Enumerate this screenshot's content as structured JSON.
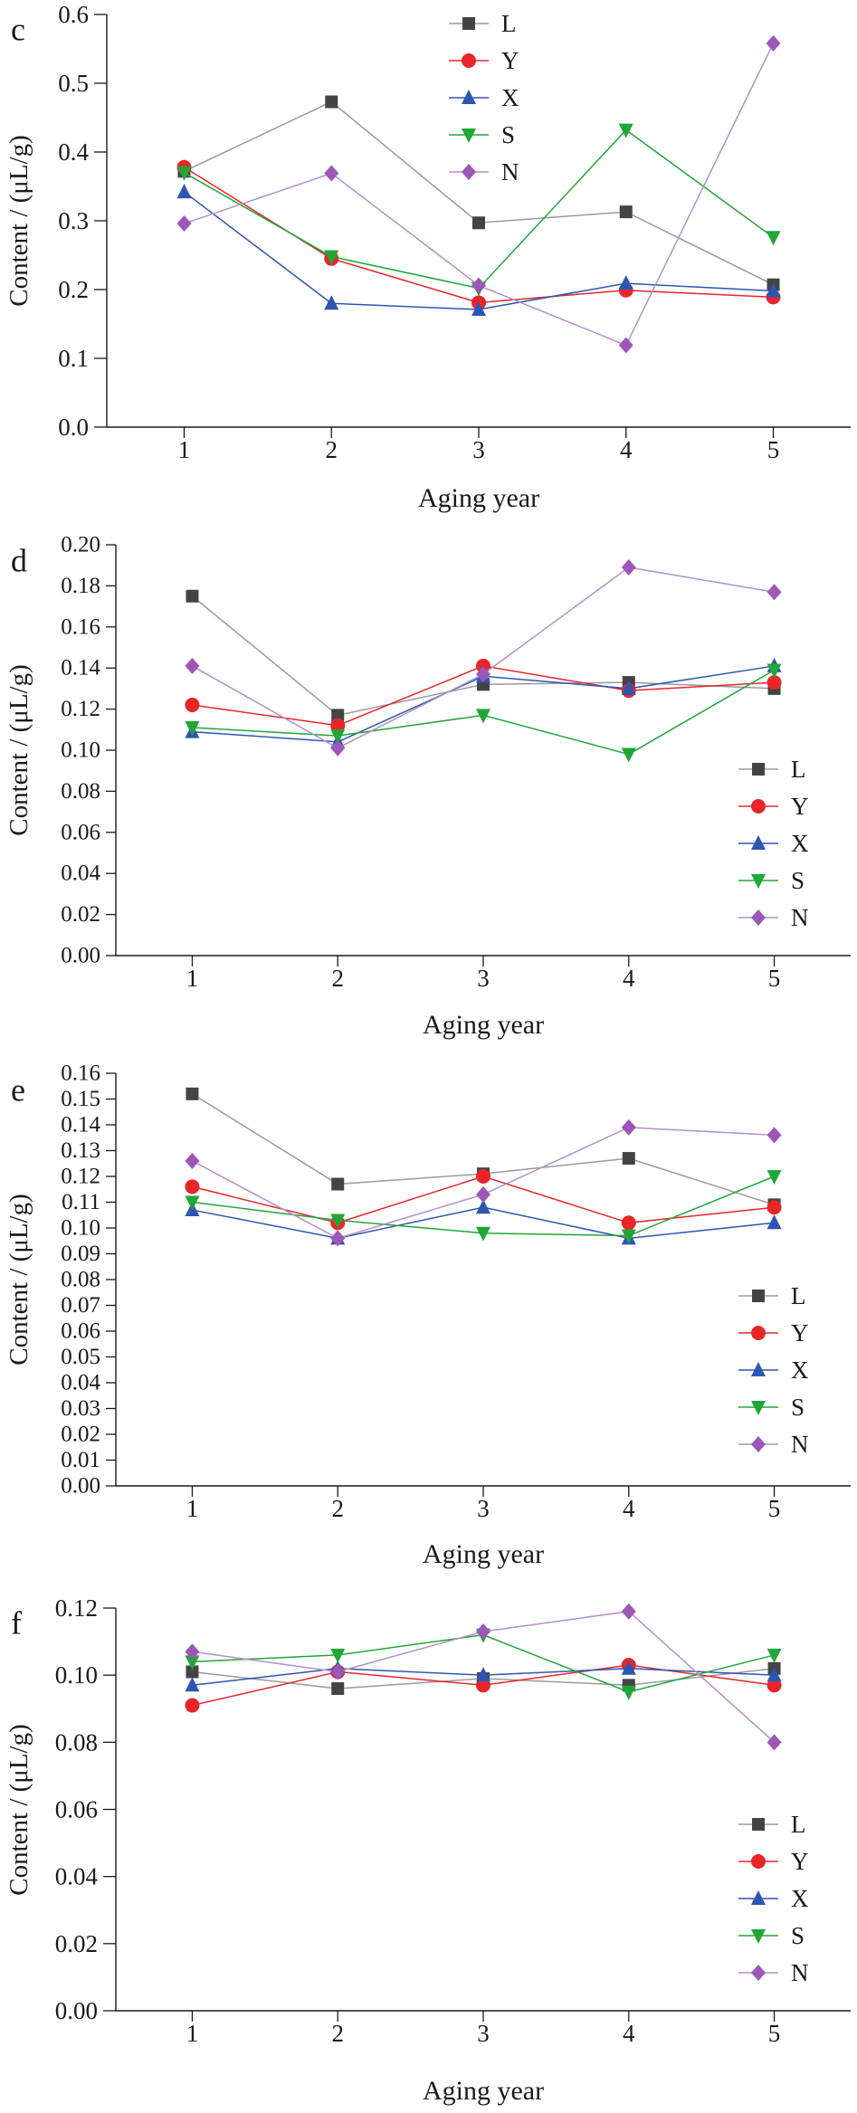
{
  "chart_data": [
    {
      "type": "line",
      "panel_label": "c",
      "xlabel": "Aging year",
      "ylabel": "Content / (μL/g)",
      "x": [
        1,
        2,
        3,
        4,
        5
      ],
      "xticks": [
        "1",
        "2",
        "3",
        "4",
        "5"
      ],
      "ylim": [
        0,
        0.6
      ],
      "yticks": [
        "0.0",
        "0.1",
        "0.2",
        "0.3",
        "0.4",
        "0.5",
        "0.6"
      ],
      "legend_position": "top-center",
      "series": [
        {
          "name": "L",
          "values": [
            0.372,
            0.473,
            0.297,
            0.313,
            0.207
          ]
        },
        {
          "name": "Y",
          "values": [
            0.378,
            0.245,
            0.181,
            0.199,
            0.189
          ]
        },
        {
          "name": "X",
          "values": [
            0.342,
            0.18,
            0.171,
            0.209,
            0.198
          ]
        },
        {
          "name": "S",
          "values": [
            0.37,
            0.248,
            0.202,
            0.432,
            0.276
          ]
        },
        {
          "name": "N",
          "values": [
            0.296,
            0.369,
            0.206,
            0.119,
            0.558
          ]
        }
      ]
    },
    {
      "type": "line",
      "panel_label": "d",
      "xlabel": "Aging year",
      "ylabel": "Content / (μL/g)",
      "x": [
        1,
        2,
        3,
        4,
        5
      ],
      "xticks": [
        "1",
        "2",
        "3",
        "4",
        "5"
      ],
      "ylim": [
        0,
        0.2
      ],
      "yticks": [
        "0.00",
        "0.02",
        "0.04",
        "0.06",
        "0.08",
        "0.10",
        "0.12",
        "0.14",
        "0.16",
        "0.18",
        "0.20"
      ],
      "legend_position": "bottom-right",
      "series": [
        {
          "name": "L",
          "values": [
            0.175,
            0.117,
            0.132,
            0.133,
            0.13
          ]
        },
        {
          "name": "Y",
          "values": [
            0.122,
            0.112,
            0.141,
            0.129,
            0.133
          ]
        },
        {
          "name": "X",
          "values": [
            0.109,
            0.104,
            0.136,
            0.13,
            0.141
          ]
        },
        {
          "name": "S",
          "values": [
            0.111,
            0.107,
            0.117,
            0.098,
            0.139
          ]
        },
        {
          "name": "N",
          "values": [
            0.141,
            0.101,
            0.137,
            0.189,
            0.177
          ]
        }
      ]
    },
    {
      "type": "line",
      "panel_label": "e",
      "xlabel": "Aging year",
      "ylabel": "Content / (μL/g)",
      "x": [
        1,
        2,
        3,
        4,
        5
      ],
      "xticks": [
        "1",
        "2",
        "3",
        "4",
        "5"
      ],
      "ylim": [
        0,
        0.16
      ],
      "yticks": [
        "0.00",
        "0.01",
        "0.02",
        "0.03",
        "0.04",
        "0.05",
        "0.06",
        "0.07",
        "0.08",
        "0.09",
        "0.10",
        "0.11",
        "0.12",
        "0.13",
        "0.14",
        "0.15",
        "0.16"
      ],
      "legend_position": "bottom-right",
      "series": [
        {
          "name": "L",
          "values": [
            0.152,
            0.117,
            0.121,
            0.127,
            0.109
          ]
        },
        {
          "name": "Y",
          "values": [
            0.116,
            0.102,
            0.12,
            0.102,
            0.108
          ]
        },
        {
          "name": "X",
          "values": [
            0.107,
            0.096,
            0.108,
            0.096,
            0.102
          ]
        },
        {
          "name": "S",
          "values": [
            0.11,
            0.103,
            0.098,
            0.097,
            0.12
          ]
        },
        {
          "name": "N",
          "values": [
            0.126,
            0.096,
            0.113,
            0.139,
            0.136
          ]
        }
      ]
    },
    {
      "type": "line",
      "panel_label": "f",
      "xlabel": "Aging year",
      "ylabel": "Content / (μL/g)",
      "x": [
        1,
        2,
        3,
        4,
        5
      ],
      "xticks": [
        "1",
        "2",
        "3",
        "4",
        "5"
      ],
      "ylim": [
        0,
        0.12
      ],
      "yticks": [
        "0.00",
        "0.02",
        "0.04",
        "0.06",
        "0.08",
        "0.10",
        "0.12"
      ],
      "legend_position": "bottom-right",
      "series": [
        {
          "name": "L",
          "values": [
            0.101,
            0.096,
            0.099,
            0.097,
            0.102
          ]
        },
        {
          "name": "Y",
          "values": [
            0.091,
            0.101,
            0.097,
            0.103,
            0.097
          ]
        },
        {
          "name": "X",
          "values": [
            0.097,
            0.102,
            0.1,
            0.102,
            0.1
          ]
        },
        {
          "name": "S",
          "values": [
            0.104,
            0.106,
            0.112,
            0.095,
            0.106
          ]
        },
        {
          "name": "N",
          "values": [
            0.107,
            0.101,
            0.113,
            0.119,
            0.08
          ]
        }
      ]
    }
  ],
  "series_styles": {
    "L": {
      "color": "#444444",
      "marker": "square"
    },
    "Y": {
      "color": "#e8262a",
      "marker": "circle"
    },
    "X": {
      "color": "#2e55b0",
      "marker": "triangle-up"
    },
    "S": {
      "color": "#21a638",
      "marker": "triangle-down"
    },
    "N": {
      "color": "#9c57b8",
      "marker": "diamond"
    }
  },
  "line_color_overrides": {
    "L": "#9a9a9a",
    "N": "#b48fc7"
  }
}
